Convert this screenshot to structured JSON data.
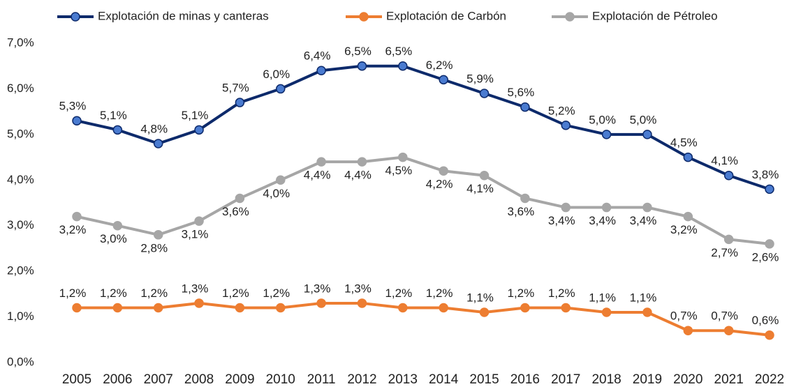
{
  "chart_data": {
    "type": "line",
    "categories": [
      "2005",
      "2006",
      "2007",
      "2008",
      "2009",
      "2010",
      "2011",
      "2012",
      "2013",
      "2014",
      "2015",
      "2016",
      "2017",
      "2018",
      "2019",
      "2020",
      "2021",
      "2022"
    ],
    "series": [
      {
        "name": "Explotación de minas y canteras",
        "color": "#0d2a6b",
        "marker_color": "#4a7bd0",
        "values": [
          5.3,
          5.1,
          4.8,
          5.1,
          5.7,
          6.0,
          6.4,
          6.5,
          6.5,
          6.2,
          5.9,
          5.6,
          5.2,
          5.0,
          5.0,
          4.5,
          4.1,
          3.8
        ],
        "value_labels": [
          "5,3%",
          "5,1%",
          "4,8%",
          "5,1%",
          "5,7%",
          "6,0%",
          "6,4%",
          "6,5%",
          "6,5%",
          "6,2%",
          "5,9%",
          "5,6%",
          "5,2%",
          "5,0%",
          "5,0%",
          "4,5%",
          "4,1%",
          "3,8%"
        ]
      },
      {
        "name": "Explotación de Carbón",
        "color": "#ed7d31",
        "marker_color": "#ed7d31",
        "values": [
          1.2,
          1.2,
          1.2,
          1.3,
          1.2,
          1.2,
          1.3,
          1.3,
          1.2,
          1.2,
          1.1,
          1.2,
          1.2,
          1.1,
          1.1,
          0.7,
          0.7,
          0.6
        ],
        "value_labels": [
          "1,2%",
          "1,2%",
          "1,2%",
          "1,3%",
          "1,2%",
          "1,2%",
          "1,3%",
          "1,3%",
          "1,2%",
          "1,2%",
          "1,1%",
          "1,2%",
          "1,2%",
          "1,1%",
          "1,1%",
          "0,7%",
          "0,7%",
          "0,6%"
        ]
      },
      {
        "name": "Explotación de Pétroleo",
        "color": "#a6a6a6",
        "marker_color": "#a6a6a6",
        "values": [
          3.2,
          3.0,
          2.8,
          3.1,
          3.6,
          4.0,
          4.4,
          4.4,
          4.5,
          4.2,
          4.1,
          3.6,
          3.4,
          3.4,
          3.4,
          3.2,
          2.7,
          2.6
        ],
        "value_labels": [
          "3,2%",
          "3,0%",
          "2,8%",
          "3,1%",
          "3,6%",
          "4,0%",
          "4,4%",
          "4,4%",
          "4,5%",
          "4,2%",
          "4,1%",
          "3,6%",
          "3,4%",
          "3,4%",
          "3,4%",
          "3,2%",
          "2,7%",
          "2,6%"
        ]
      }
    ],
    "ylim": [
      0,
      7
    ],
    "yticks": [
      {
        "value": 0,
        "label": "0,0%"
      },
      {
        "value": 1,
        "label": "1,0%"
      },
      {
        "value": 2,
        "label": "2,0%"
      },
      {
        "value": 3,
        "label": "3,0%"
      },
      {
        "value": 4,
        "label": "4,0%"
      },
      {
        "value": 5,
        "label": "5,0%"
      },
      {
        "value": 6,
        "label": "6,0%"
      },
      {
        "value": 7,
        "label": "7,0%"
      }
    ],
    "legend": "top"
  }
}
